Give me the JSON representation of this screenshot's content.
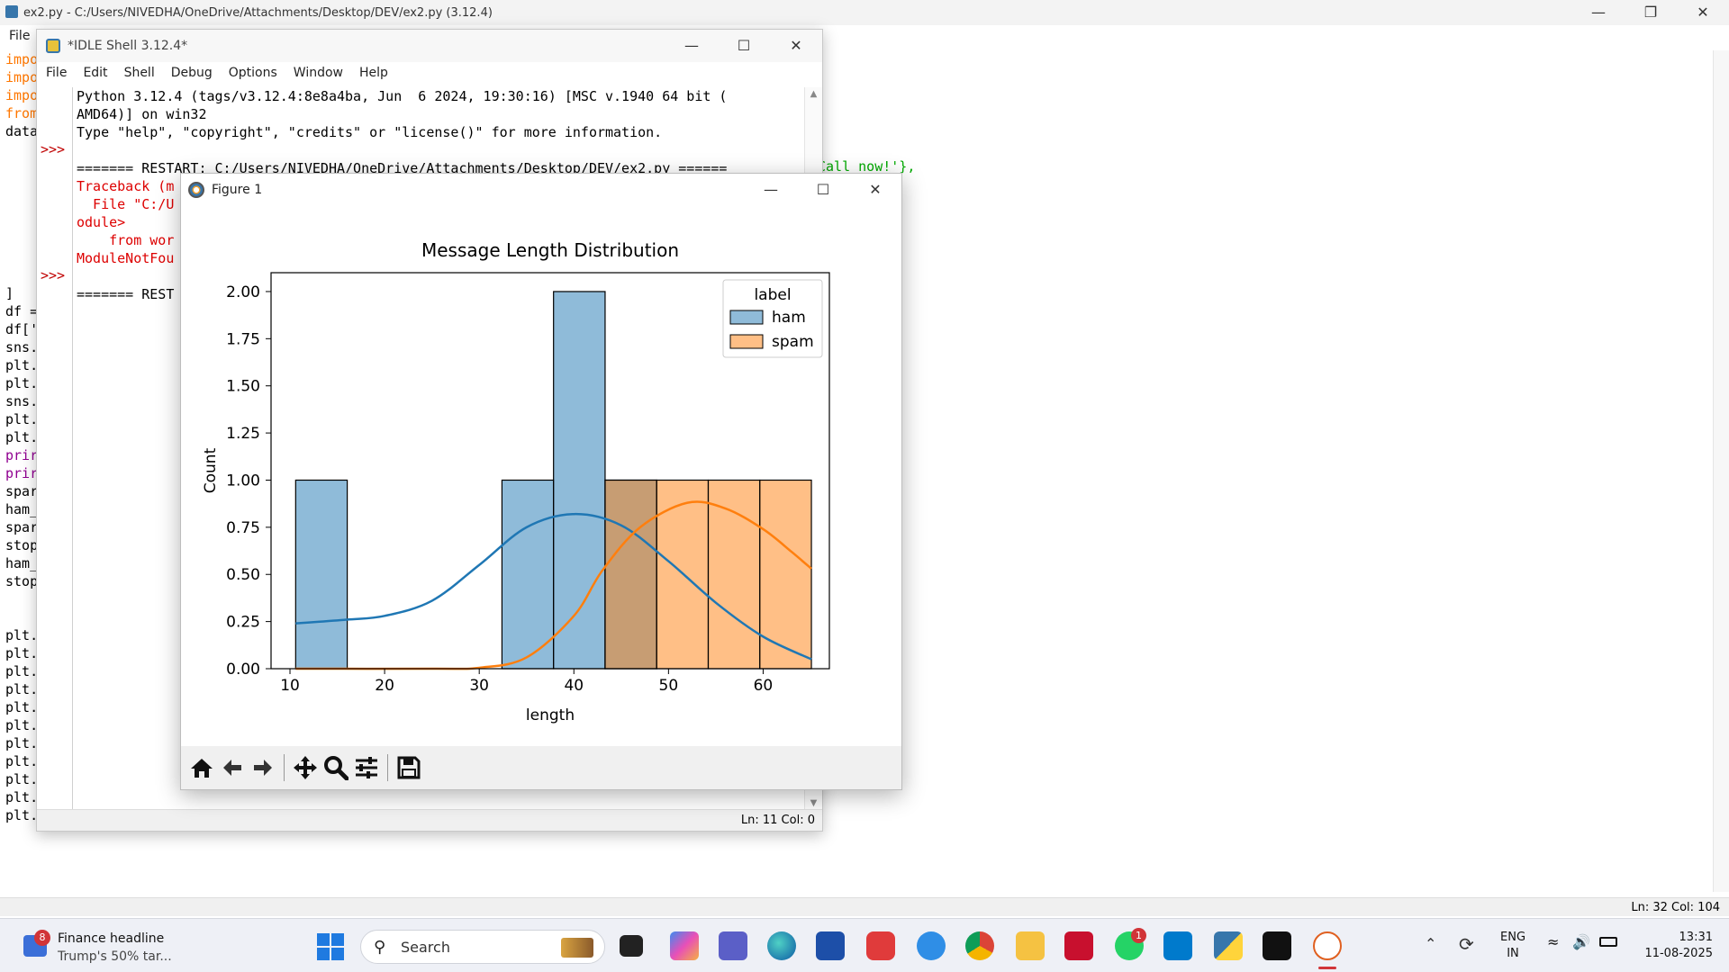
{
  "editor": {
    "title": "ex2.py - C:/Users/NIVEDHA/OneDrive/Attachments/Desktop/DEV/ex2.py (3.12.4)",
    "menu_file": "File",
    "code_lines": [
      {
        "text": "impo",
        "color": "#ff7700"
      },
      {
        "text": "impo",
        "color": "#ff7700"
      },
      {
        "text": "impo",
        "color": "#ff7700"
      },
      {
        "text": "from",
        "color": "#ff7700"
      },
      {
        "text": "data",
        "color": "#000000"
      },
      {
        "text": "",
        "color": "#000000"
      },
      {
        "text": "",
        "color": "#000000"
      },
      {
        "text": "",
        "color": "#000000"
      },
      {
        "text": "",
        "color": "#000000"
      },
      {
        "text": "",
        "color": "#000000"
      },
      {
        "text": "",
        "color": "#000000"
      },
      {
        "text": "",
        "color": "#000000"
      },
      {
        "text": "",
        "color": "#000000"
      },
      {
        "text": "]",
        "color": "#000000"
      },
      {
        "text": "df =",
        "color": "#000000"
      },
      {
        "text": "df['",
        "color": "#000000"
      },
      {
        "text": "sns.",
        "color": "#000000"
      },
      {
        "text": "plt.",
        "color": "#000000"
      },
      {
        "text": "plt.",
        "color": "#000000"
      },
      {
        "text": "sns.",
        "color": "#000000"
      },
      {
        "text": "plt.",
        "color": "#000000"
      },
      {
        "text": "plt.",
        "color": "#000000"
      },
      {
        "text": "prir",
        "color": "#900090"
      },
      {
        "text": "prir",
        "color": "#900090"
      },
      {
        "text": "spar",
        "color": "#000000"
      },
      {
        "text": "ham_",
        "color": "#000000"
      },
      {
        "text": "spar",
        "color": "#000000"
      },
      {
        "text": "stop",
        "color": "#000000"
      },
      {
        "text": "ham_",
        "color": "#000000"
      },
      {
        "text": "stop",
        "color": "#000000"
      },
      {
        "text": "",
        "color": "#000000"
      },
      {
        "text": "",
        "color": "#000000"
      },
      {
        "text": "plt.",
        "color": "#000000"
      },
      {
        "text": "plt.",
        "color": "#000000"
      },
      {
        "text": "plt.",
        "color": "#000000"
      },
      {
        "text": "plt.",
        "color": "#000000"
      },
      {
        "text": "plt.",
        "color": "#000000"
      },
      {
        "text": "plt.",
        "color": "#000000"
      },
      {
        "text": "plt.",
        "color": "#000000"
      },
      {
        "text": "plt.",
        "color": "#000000"
      },
      {
        "text": "plt.",
        "color": "#000000"
      },
      {
        "text": "plt.",
        "color": "#000000"
      },
      {
        "text": "plt.show()",
        "color": "#000000"
      }
    ],
    "snippet_right": "Call now!'},",
    "status": "Ln: 32   Col: 104"
  },
  "shell": {
    "title": "*IDLE Shell 3.12.4*",
    "menu": [
      "File",
      "Edit",
      "Shell",
      "Debug",
      "Options",
      "Window",
      "Help"
    ],
    "prompt": ">>>",
    "lines": [
      {
        "text": "Python 3.12.4 (tags/v3.12.4:8e8a4ba, Jun  6 2024, 19:30:16) [MSC v.1940 64 bit (",
        "color": "#000000"
      },
      {
        "text": "AMD64)] on win32",
        "color": "#000000"
      },
      {
        "text": "Type \"help\", \"copyright\", \"credits\" or \"license()\" for more information.",
        "color": "#000000"
      },
      {
        "text": "",
        "color": "#000000"
      },
      {
        "text": "======= RESTART: C:/Users/NIVEDHA/OneDrive/Attachments/Desktop/DEV/ex2.py ======",
        "color": "#000000"
      },
      {
        "text": "Traceback (m",
        "color": "#dd0000"
      },
      {
        "text": "  File \"C:/U",
        "color": "#dd0000"
      },
      {
        "text": "odule>",
        "color": "#dd0000"
      },
      {
        "text": "    from wor",
        "color": "#dd0000"
      },
      {
        "text": "ModuleNotFou",
        "color": "#dd0000"
      },
      {
        "text": "",
        "color": "#000000"
      },
      {
        "text": "======= REST",
        "color": "#000000"
      }
    ],
    "status": "Ln: 11   Col: 0"
  },
  "figure": {
    "title": "Figure 1",
    "toolbar": [
      "home-icon",
      "back-icon",
      "forward-icon",
      "pan-icon",
      "zoom-icon",
      "configure-icon",
      "save-icon"
    ]
  },
  "chart_data": {
    "type": "bar",
    "title": "Message Length Distribution",
    "xlabel": "length",
    "ylabel": "Count",
    "xlim": [
      8,
      67
    ],
    "ylim": [
      0,
      2.1
    ],
    "xticks": [
      10,
      20,
      30,
      40,
      50,
      60
    ],
    "yticks": [
      "0.00",
      "0.25",
      "0.50",
      "0.75",
      "1.00",
      "1.25",
      "1.50",
      "1.75",
      "2.00"
    ],
    "legend": {
      "title": "label",
      "position": "top-right"
    },
    "bin_edges": [
      10.6,
      16.05,
      21.5,
      26.95,
      32.4,
      37.85,
      43.3,
      48.75,
      54.2,
      59.65,
      65.1
    ],
    "series": [
      {
        "name": "ham",
        "color": "#1f77b4",
        "counts": [
          1,
          0,
          0,
          0,
          1,
          2,
          1,
          0,
          0,
          0
        ],
        "kde": [
          [
            10.6,
            0.24
          ],
          [
            16,
            0.26
          ],
          [
            20,
            0.28
          ],
          [
            25,
            0.36
          ],
          [
            30,
            0.55
          ],
          [
            35,
            0.75
          ],
          [
            40,
            0.82
          ],
          [
            45,
            0.76
          ],
          [
            50,
            0.57
          ],
          [
            55,
            0.35
          ],
          [
            60,
            0.17
          ],
          [
            65.1,
            0.05
          ]
        ]
      },
      {
        "name": "spam",
        "color": "#ff7f0e",
        "counts": [
          0,
          0,
          0,
          0,
          0,
          0,
          1,
          1,
          1,
          1
        ],
        "kde": [
          [
            10.6,
            0
          ],
          [
            25,
            0
          ],
          [
            30,
            0.005
          ],
          [
            35,
            0.06
          ],
          [
            40,
            0.28
          ],
          [
            43,
            0.52
          ],
          [
            47,
            0.75
          ],
          [
            52,
            0.88
          ],
          [
            56,
            0.85
          ],
          [
            60,
            0.74
          ],
          [
            63,
            0.62
          ],
          [
            65.1,
            0.53
          ]
        ]
      }
    ]
  },
  "taskbar": {
    "news_title": "Finance headline",
    "news_sub": "Trump's 50% tar...",
    "news_badge": "8",
    "search_label": "Search",
    "whatsapp_badge": "1",
    "lang": "ENG",
    "region": "IN",
    "time": "13:31",
    "date": "11-08-2025"
  }
}
